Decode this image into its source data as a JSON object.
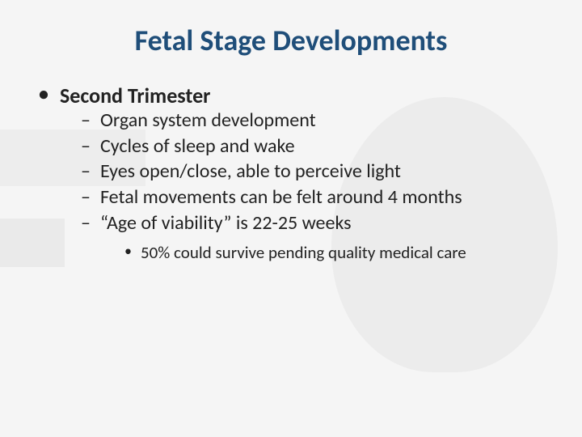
{
  "title": "Fetal Stage Developments",
  "heading": "Second Trimester",
  "points": {
    "0": "Organ system development",
    "1": "Cycles of sleep and wake",
    "2": "Eyes open/close, able to perceive light",
    "3": "Fetal movements can be felt around 4 months",
    "4": "“Age of viability” is 22-25 weeks"
  },
  "subpoint": "50% could survive pending quality medical care",
  "colors": {
    "title": "#1f4e79",
    "text": "#222222",
    "background": "#f5f5f5"
  },
  "typography": {
    "title_fontsize": 36,
    "heading_fontsize": 26,
    "point_fontsize": 24,
    "subpoint_fontsize": 21,
    "title_weight": 700,
    "heading_weight": 700,
    "body_weight": 400
  }
}
